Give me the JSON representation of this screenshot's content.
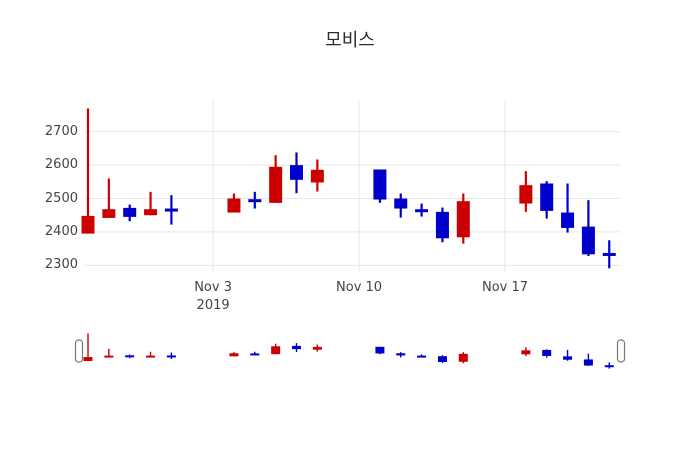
{
  "chart_data": {
    "type": "candlestick",
    "title": "모비스",
    "x": [
      "2019-10-28",
      "2019-10-29",
      "2019-10-30",
      "2019-10-31",
      "2019-11-01",
      "2019-11-04",
      "2019-11-05",
      "2019-11-06",
      "2019-11-07",
      "2019-11-08",
      "2019-11-11",
      "2019-11-12",
      "2019-11-13",
      "2019-11-14",
      "2019-11-15",
      "2019-11-18",
      "2019-11-19",
      "2019-11-20",
      "2019-11-21",
      "2019-11-22"
    ],
    "open": [
      2395,
      2442,
      2472,
      2450,
      2470,
      2458,
      2498,
      2487,
      2600,
      2548,
      2587,
      2500,
      2468,
      2460,
      2384,
      2485,
      2545,
      2458,
      2416,
      2337
    ],
    "high": [
      2770,
      2560,
      2482,
      2520,
      2510,
      2515,
      2520,
      2630,
      2638,
      2617,
      2587,
      2515,
      2485,
      2473,
      2515,
      2582,
      2552,
      2545,
      2495,
      2375
    ],
    "low": [
      2395,
      2442,
      2432,
      2450,
      2422,
      2458,
      2470,
      2487,
      2516,
      2521,
      2487,
      2443,
      2446,
      2369,
      2365,
      2460,
      2440,
      2398,
      2328,
      2291
    ],
    "close": [
      2448,
      2468,
      2445,
      2468,
      2462,
      2500,
      2490,
      2595,
      2556,
      2586,
      2497,
      2470,
      2460,
      2381,
      2492,
      2540,
      2463,
      2412,
      2333,
      2330
    ],
    "increasing_color": "#cc0000",
    "decreasing_color": "#0000cc",
    "yticks": [
      2300,
      2400,
      2500,
      2600,
      2700
    ],
    "xticks": [
      {
        "date": "2019-11-03",
        "label": "Nov 3",
        "sublabel": "2019"
      },
      {
        "date": "2019-11-10",
        "label": "Nov 10",
        "sublabel": ""
      },
      {
        "date": "2019-11-17",
        "label": "Nov 17",
        "sublabel": ""
      }
    ],
    "ylim": [
      2280,
      2792
    ],
    "grid": true,
    "gridcolor": "#e6e6e6",
    "legend": "none",
    "rangeslider": true,
    "background": "#ffffff",
    "text_color": "#2d2d2d"
  }
}
